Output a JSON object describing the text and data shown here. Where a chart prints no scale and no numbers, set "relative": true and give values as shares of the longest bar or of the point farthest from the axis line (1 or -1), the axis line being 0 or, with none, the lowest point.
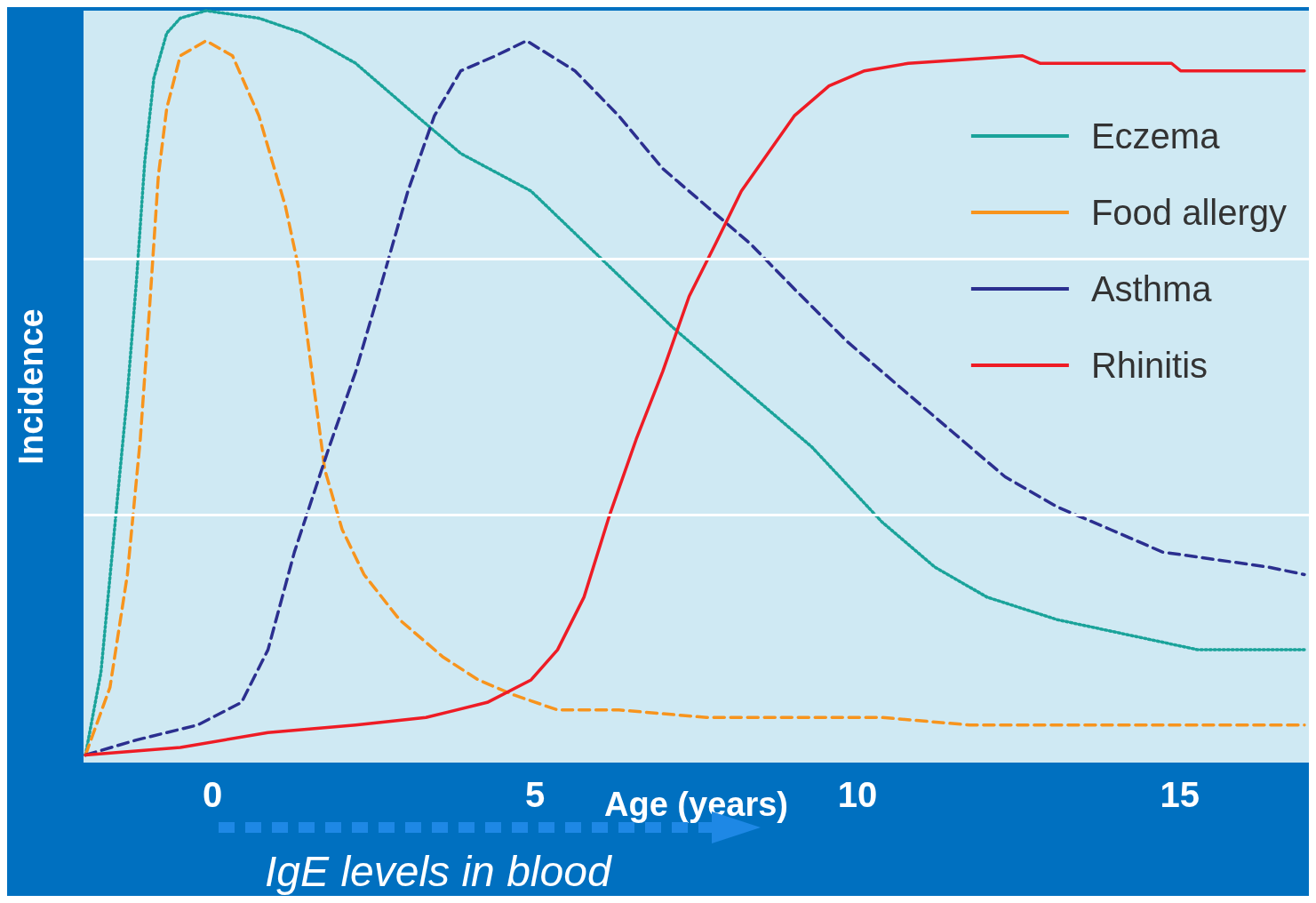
{
  "chart_data": {
    "type": "line",
    "xlabel": "Age (years)",
    "ylabel": "Incidence",
    "relative": true,
    "xlim": [
      -2,
      17
    ],
    "xticks": [
      0,
      5,
      10,
      15
    ],
    "legend": "top right",
    "ref_lines": [
      {
        "axis": "y",
        "value": 0.33,
        "color": "#ffffff"
      },
      {
        "axis": "y",
        "value": 0.67,
        "color": "#ffffff"
      }
    ],
    "annotations": [
      "IgE levels in blood"
    ],
    "series": [
      {
        "name": "Eczema",
        "color": "#1aa39a",
        "line_style": "dotted",
        "x": [
          -1.97,
          -1.73,
          -1.52,
          -1.32,
          -1.18,
          -1.05,
          -0.91,
          -0.71,
          -0.5,
          -0.1,
          0.72,
          1.4,
          2.22,
          3.03,
          3.85,
          4.94,
          6.03,
          7.12,
          8.2,
          9.29,
          10.38,
          11.2,
          12.01,
          13.1,
          14.19,
          15.28,
          16.1,
          16.93
        ],
        "values": [
          0.01,
          0.12,
          0.31,
          0.49,
          0.64,
          0.8,
          0.91,
          0.97,
          0.99,
          1,
          0.99,
          0.97,
          0.93,
          0.87,
          0.81,
          0.76,
          0.67,
          0.58,
          0.5,
          0.42,
          0.32,
          0.26,
          0.22,
          0.19,
          0.17,
          0.15,
          0.15,
          0.15
        ]
      },
      {
        "name": "Food allergy",
        "color": "#f7941d",
        "line_style": "dashed",
        "x": [
          -1.97,
          -1.59,
          -1.32,
          -1.12,
          -0.98,
          -0.84,
          -0.71,
          -0.5,
          -0.1,
          0.31,
          0.72,
          1.13,
          1.33,
          1.54,
          1.74,
          2.01,
          2.35,
          2.9,
          3.58,
          4.12,
          4.67,
          5.35,
          6.3,
          7.66,
          10.38,
          11.74,
          16.93
        ],
        "values": [
          0.01,
          0.1,
          0.25,
          0.43,
          0.6,
          0.78,
          0.87,
          0.94,
          0.96,
          0.94,
          0.86,
          0.74,
          0.66,
          0.52,
          0.39,
          0.31,
          0.25,
          0.19,
          0.14,
          0.11,
          0.09,
          0.07,
          0.07,
          0.06,
          0.06,
          0.05,
          0.05
        ]
      },
      {
        "name": "Asthma",
        "color": "#2b2f8f",
        "line_style": "dashed",
        "x": [
          -1.97,
          -1.18,
          -0.23,
          0.45,
          0.86,
          1.27,
          1.54,
          1.81,
          2.22,
          2.63,
          3.03,
          3.44,
          3.85,
          4.39,
          4.87,
          5.62,
          6.3,
          6.98,
          7.66,
          8.34,
          9.02,
          9.84,
          10.65,
          11.47,
          12.29,
          13.1,
          13.92,
          14.73,
          15.55,
          16.37,
          16.93
        ],
        "values": [
          0.01,
          0.03,
          0.05,
          0.08,
          0.15,
          0.28,
          0.35,
          0.42,
          0.52,
          0.64,
          0.76,
          0.86,
          0.92,
          0.94,
          0.96,
          0.92,
          0.86,
          0.79,
          0.74,
          0.69,
          0.63,
          0.56,
          0.5,
          0.44,
          0.38,
          0.34,
          0.31,
          0.28,
          0.27,
          0.26,
          0.25
        ]
      },
      {
        "name": "Rhinitis",
        "color": "#ee1c25",
        "line_style": "solid",
        "x": [
          -1.97,
          -0.5,
          0.86,
          2.22,
          3.31,
          4.26,
          4.94,
          5.35,
          5.76,
          6.16,
          6.57,
          6.98,
          7.39,
          7.8,
          8.2,
          8.61,
          9.02,
          9.56,
          10.11,
          10.79,
          12.56,
          12.83,
          14.87,
          15.01,
          16.93
        ],
        "values": [
          0.01,
          0.02,
          0.04,
          0.05,
          0.06,
          0.08,
          0.11,
          0.15,
          0.22,
          0.33,
          0.43,
          0.52,
          0.62,
          0.69,
          0.76,
          0.81,
          0.86,
          0.9,
          0.92,
          0.93,
          0.94,
          0.93,
          0.93,
          0.92,
          0.92
        ]
      }
    ]
  }
}
